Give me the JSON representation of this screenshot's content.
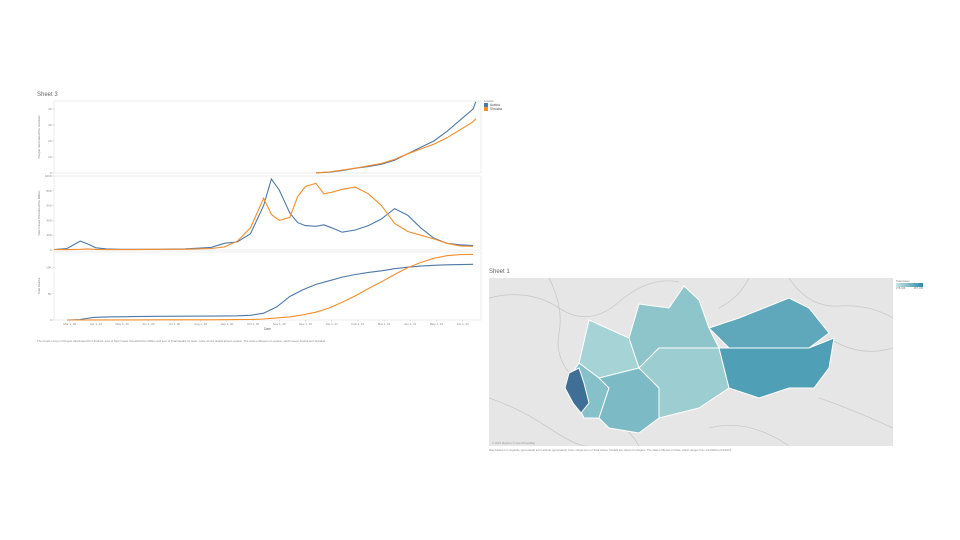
{
  "left_sheet": {
    "title": "Sheet 3",
    "legend_title": "Location",
    "legend": [
      {
        "name": "Austria",
        "color": "#4e79a7"
      },
      {
        "name": "Slovakia",
        "color": "#f28e2b"
      }
    ],
    "x_axis_title": "Date",
    "caption": "The trends of sum of People Vaccinated Per Hundred, sum of New Cases Smoothed Per Million and sum of Total Deaths for Date. Color shows details about Location. The view is filtered on Location, which keeps Austria and Slovakia."
  },
  "right_sheet": {
    "title": "Sheet 1",
    "legend_title": "Total Cases",
    "legend_min": "276,346",
    "legend_max": "487,136",
    "map_credit": "© 2021 Mapbox © OpenStreetMap",
    "caption": "Map based on Longitude (generated) and Latitude (generated). Color shows sum of Total Cases. Details are shown for Region. The data is filtered on Date, which ranges from 1/1/2020 to 6/2/2021."
  },
  "chart_data": [
    {
      "type": "line",
      "ylabel": "People Vaccinated Per Hundred",
      "ylim": [
        0,
        45
      ],
      "yticks": [
        "0",
        "10",
        "20",
        "30",
        "40"
      ],
      "x_labels": [
        "Mar 1, 20",
        "Apr 1, 20",
        "May 1, 20",
        "Jun 1, 20",
        "Jul 1, 20",
        "Aug 1, 20",
        "Sep 1, 20",
        "Oct 1, 20",
        "Nov 1, 20",
        "Dec 1, 20",
        "Jan 1, 21",
        "Feb 1, 21",
        "Mar 1, 21",
        "Apr 1, 21",
        "May 1, 21",
        "Jun 1, 21"
      ],
      "x": [
        10.0,
        10.5,
        11.0,
        11.5,
        12.0,
        12.5,
        13.0,
        13.5,
        14.0,
        14.5,
        15.0,
        15.5,
        16.0,
        16.1
      ],
      "series": [
        {
          "name": "Austria",
          "color": "#4e79a7",
          "values": [
            0.1,
            0.5,
            1.5,
            3.0,
            4.0,
            5.5,
            8.0,
            12.0,
            16.0,
            20.0,
            26.0,
            33.0,
            40.0,
            44.5
          ]
        },
        {
          "name": "Slovakia",
          "color": "#f28e2b",
          "values": [
            0.1,
            0.6,
            1.8,
            3.0,
            4.5,
            6.0,
            8.5,
            12.0,
            15.0,
            18.0,
            22.0,
            27.0,
            32.0,
            34.0
          ]
        }
      ]
    },
    {
      "type": "line",
      "ylabel": "New Cases Smoothed Per Million",
      "ylim": [
        0,
        1000
      ],
      "yticks": [
        "0",
        "200",
        "400",
        "600",
        "800",
        "1000"
      ],
      "x": [
        0.0,
        0.5,
        1.0,
        1.3,
        1.6,
        2.0,
        2.5,
        3.0,
        4.0,
        5.0,
        6.0,
        6.5,
        7.0,
        7.5,
        8.0,
        8.3,
        8.6,
        9.0,
        9.3,
        9.6,
        10.0,
        10.3,
        10.6,
        11.0,
        11.5,
        12.0,
        12.5,
        13.0,
        13.5,
        14.0,
        14.5,
        15.0,
        15.5,
        16.0
      ],
      "series": [
        {
          "name": "Austria",
          "color": "#4e79a7",
          "values": [
            5,
            20,
            120,
            80,
            30,
            15,
            10,
            10,
            10,
            15,
            35,
            90,
            110,
            220,
            600,
            960,
            810,
            500,
            370,
            330,
            320,
            340,
            300,
            240,
            270,
            330,
            420,
            560,
            470,
            300,
            160,
            90,
            70,
            60
          ]
        },
        {
          "name": "Slovakia",
          "color": "#f28e2b",
          "values": [
            5,
            5,
            10,
            15,
            8,
            5,
            5,
            5,
            10,
            10,
            20,
            40,
            120,
            300,
            700,
            480,
            400,
            440,
            720,
            860,
            900,
            760,
            780,
            820,
            850,
            760,
            600,
            360,
            250,
            200,
            150,
            90,
            55,
            50
          ]
        }
      ]
    },
    {
      "type": "line",
      "ylabel": "Total Deaths",
      "ylim": [
        0,
        13000
      ],
      "yticks": [
        "0",
        "5K",
        "10K"
      ],
      "x": [
        0.5,
        1.0,
        1.5,
        2.0,
        3.0,
        4.0,
        5.0,
        6.0,
        7.0,
        7.5,
        8.0,
        8.5,
        9.0,
        9.5,
        10.0,
        10.5,
        11.0,
        11.5,
        12.0,
        12.5,
        13.0,
        13.5,
        14.0,
        14.5,
        15.0,
        15.5,
        16.0
      ],
      "series": [
        {
          "name": "Austria",
          "color": "#4e79a7",
          "values": [
            0,
            100,
            500,
            600,
            650,
            700,
            720,
            750,
            800,
            900,
            1300,
            2500,
            4500,
            5800,
            6800,
            7500,
            8200,
            8700,
            9100,
            9400,
            9800,
            10100,
            10300,
            10450,
            10550,
            10600,
            10650
          ]
        },
        {
          "name": "Slovakia",
          "color": "#f28e2b",
          "values": [
            0,
            5,
            20,
            25,
            28,
            30,
            32,
            40,
            70,
            100,
            200,
            400,
            600,
            1000,
            1500,
            2300,
            3400,
            4600,
            6000,
            7300,
            8700,
            10000,
            11000,
            11800,
            12300,
            12500,
            12550
          ]
        }
      ]
    }
  ]
}
